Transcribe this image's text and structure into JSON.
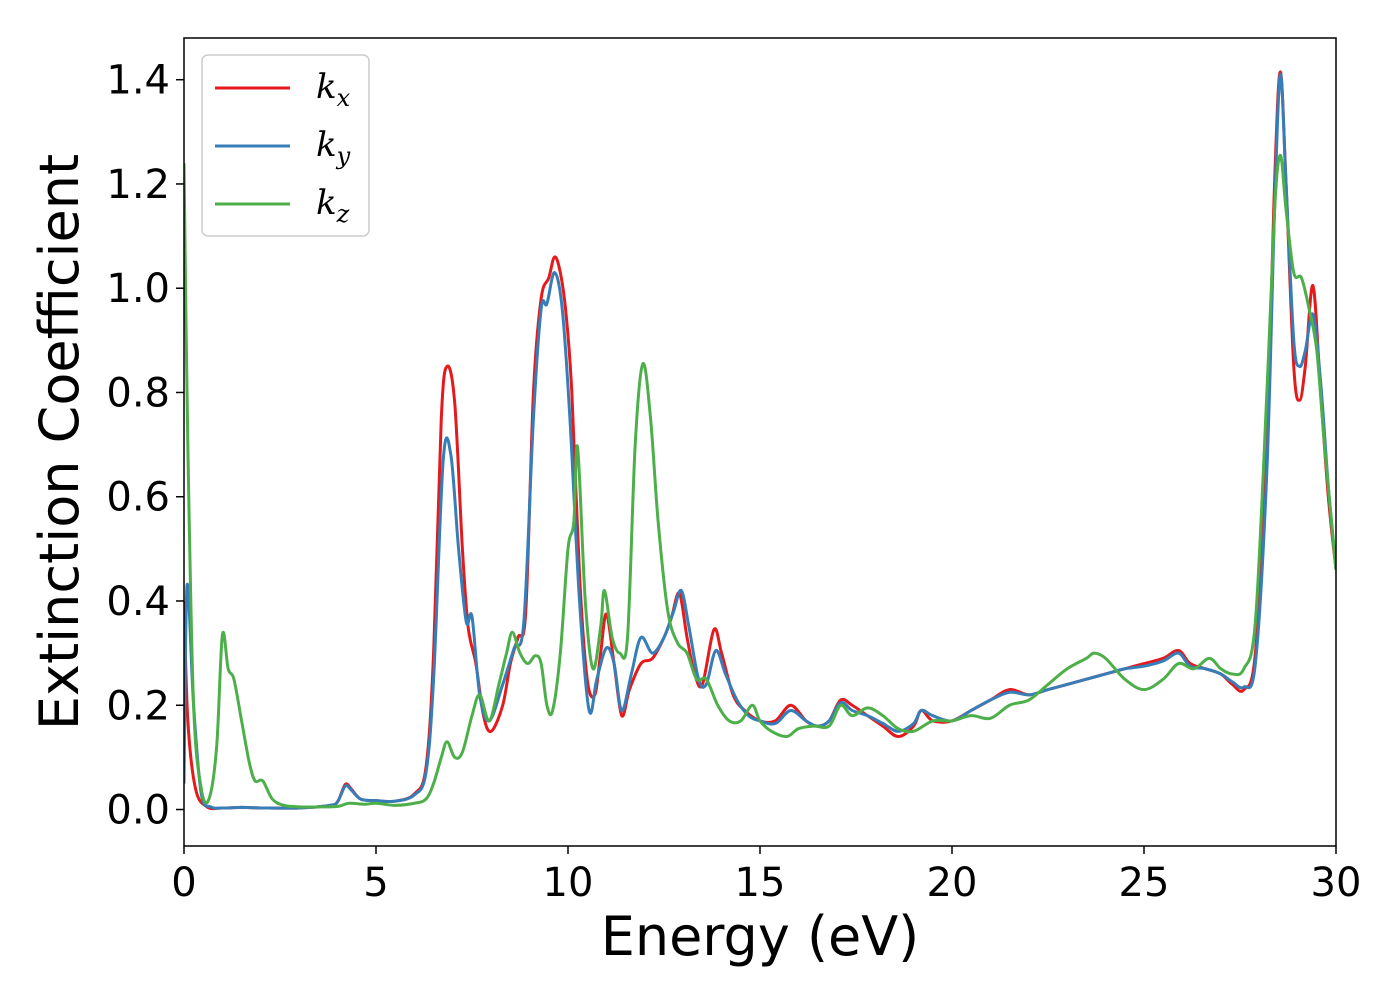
{
  "chart_data": {
    "type": "line",
    "title": "",
    "xlabel": "Energy (eV)",
    "ylabel": "Extinction Coefficient",
    "xlim": [
      0,
      30
    ],
    "ylim": [
      -0.07,
      1.48
    ],
    "xticks": [
      0,
      5,
      10,
      15,
      20,
      25,
      30
    ],
    "xtick_labels": [
      "0",
      "5",
      "10",
      "15",
      "20",
      "25",
      "30"
    ],
    "yticks": [
      0.0,
      0.2,
      0.4,
      0.6,
      0.8,
      1.0,
      1.2,
      1.4
    ],
    "ytick_labels": [
      "0.0",
      "0.2",
      "0.4",
      "0.6",
      "0.8",
      "1.0",
      "1.2",
      "1.4"
    ],
    "grid": false,
    "legend_position": "top-left",
    "series": [
      {
        "name": "kx",
        "label_base": "k",
        "label_sub": "x",
        "color": "#e41a1c",
        "points": [
          [
            0,
            0.4
          ],
          [
            0.1,
            0.17
          ],
          [
            0.3,
            0.04
          ],
          [
            0.6,
            0.005
          ],
          [
            1.0,
            0.003
          ],
          [
            1.5,
            0.004
          ],
          [
            2.0,
            0.003
          ],
          [
            3.0,
            0.003
          ],
          [
            3.8,
            0.008
          ],
          [
            4.0,
            0.015
          ],
          [
            4.2,
            0.048
          ],
          [
            4.35,
            0.04
          ],
          [
            4.6,
            0.02
          ],
          [
            5.0,
            0.017
          ],
          [
            5.5,
            0.016
          ],
          [
            6.0,
            0.03
          ],
          [
            6.3,
            0.08
          ],
          [
            6.5,
            0.3
          ],
          [
            6.7,
            0.75
          ],
          [
            6.85,
            0.85
          ],
          [
            7.05,
            0.78
          ],
          [
            7.25,
            0.5
          ],
          [
            7.4,
            0.35
          ],
          [
            7.6,
            0.28
          ],
          [
            7.8,
            0.18
          ],
          [
            8.0,
            0.15
          ],
          [
            8.3,
            0.2
          ],
          [
            8.5,
            0.28
          ],
          [
            8.7,
            0.33
          ],
          [
            8.9,
            0.38
          ],
          [
            9.1,
            0.8
          ],
          [
            9.3,
            0.98
          ],
          [
            9.5,
            1.02
          ],
          [
            9.65,
            1.06
          ],
          [
            9.8,
            1.03
          ],
          [
            9.95,
            0.95
          ],
          [
            10.1,
            0.8
          ],
          [
            10.3,
            0.45
          ],
          [
            10.5,
            0.25
          ],
          [
            10.7,
            0.22
          ],
          [
            10.85,
            0.3
          ],
          [
            11.0,
            0.375
          ],
          [
            11.2,
            0.28
          ],
          [
            11.4,
            0.18
          ],
          [
            11.6,
            0.23
          ],
          [
            11.9,
            0.28
          ],
          [
            12.2,
            0.29
          ],
          [
            12.5,
            0.33
          ],
          [
            12.7,
            0.37
          ],
          [
            12.9,
            0.415
          ],
          [
            13.1,
            0.33
          ],
          [
            13.3,
            0.26
          ],
          [
            13.5,
            0.24
          ],
          [
            13.8,
            0.345
          ],
          [
            14.0,
            0.3
          ],
          [
            14.3,
            0.22
          ],
          [
            14.6,
            0.19
          ],
          [
            15.0,
            0.17
          ],
          [
            15.4,
            0.17
          ],
          [
            15.8,
            0.2
          ],
          [
            16.2,
            0.17
          ],
          [
            16.5,
            0.16
          ],
          [
            16.8,
            0.17
          ],
          [
            17.1,
            0.21
          ],
          [
            17.4,
            0.2
          ],
          [
            17.8,
            0.18
          ],
          [
            18.2,
            0.16
          ],
          [
            18.6,
            0.14
          ],
          [
            19.0,
            0.16
          ],
          [
            19.2,
            0.19
          ],
          [
            19.5,
            0.17
          ],
          [
            20.0,
            0.17
          ],
          [
            20.5,
            0.19
          ],
          [
            21.0,
            0.21
          ],
          [
            21.5,
            0.23
          ],
          [
            22.0,
            0.22
          ],
          [
            22.5,
            0.23
          ],
          [
            23.0,
            0.24
          ],
          [
            23.5,
            0.25
          ],
          [
            24.0,
            0.26
          ],
          [
            24.5,
            0.27
          ],
          [
            25.0,
            0.28
          ],
          [
            25.5,
            0.29
          ],
          [
            25.9,
            0.305
          ],
          [
            26.2,
            0.28
          ],
          [
            26.6,
            0.27
          ],
          [
            27.0,
            0.26
          ],
          [
            27.3,
            0.24
          ],
          [
            27.6,
            0.23
          ],
          [
            27.9,
            0.3
          ],
          [
            28.2,
            0.7
          ],
          [
            28.4,
            1.2
          ],
          [
            28.55,
            1.415
          ],
          [
            28.7,
            1.2
          ],
          [
            28.9,
            0.85
          ],
          [
            29.05,
            0.785
          ],
          [
            29.2,
            0.85
          ],
          [
            29.4,
            1.005
          ],
          [
            29.6,
            0.8
          ],
          [
            29.8,
            0.6
          ],
          [
            30.0,
            0.46
          ]
        ]
      },
      {
        "name": "ky",
        "label_base": "k",
        "label_sub": "y",
        "color": "#377eb8",
        "points": [
          [
            0,
            0.05
          ],
          [
            0.08,
            0.43
          ],
          [
            0.25,
            0.2
          ],
          [
            0.45,
            0.03
          ],
          [
            0.7,
            0.005
          ],
          [
            1.0,
            0.003
          ],
          [
            1.5,
            0.004
          ],
          [
            2.0,
            0.003
          ],
          [
            3.0,
            0.003
          ],
          [
            3.8,
            0.008
          ],
          [
            4.0,
            0.015
          ],
          [
            4.2,
            0.045
          ],
          [
            4.35,
            0.038
          ],
          [
            4.6,
            0.02
          ],
          [
            5.0,
            0.017
          ],
          [
            5.5,
            0.016
          ],
          [
            6.0,
            0.028
          ],
          [
            6.3,
            0.07
          ],
          [
            6.5,
            0.25
          ],
          [
            6.75,
            0.67
          ],
          [
            6.95,
            0.68
          ],
          [
            7.15,
            0.5
          ],
          [
            7.35,
            0.36
          ],
          [
            7.5,
            0.37
          ],
          [
            7.7,
            0.22
          ],
          [
            7.95,
            0.17
          ],
          [
            8.3,
            0.24
          ],
          [
            8.6,
            0.31
          ],
          [
            8.85,
            0.36
          ],
          [
            9.1,
            0.75
          ],
          [
            9.3,
            0.96
          ],
          [
            9.45,
            0.97
          ],
          [
            9.65,
            1.03
          ],
          [
            9.85,
            0.96
          ],
          [
            10.05,
            0.75
          ],
          [
            10.3,
            0.4
          ],
          [
            10.55,
            0.19
          ],
          [
            10.75,
            0.25
          ],
          [
            11.0,
            0.31
          ],
          [
            11.2,
            0.28
          ],
          [
            11.4,
            0.19
          ],
          [
            11.65,
            0.26
          ],
          [
            11.9,
            0.33
          ],
          [
            12.2,
            0.3
          ],
          [
            12.5,
            0.33
          ],
          [
            12.75,
            0.38
          ],
          [
            12.95,
            0.42
          ],
          [
            13.15,
            0.35
          ],
          [
            13.4,
            0.25
          ],
          [
            13.6,
            0.24
          ],
          [
            13.85,
            0.305
          ],
          [
            14.1,
            0.26
          ],
          [
            14.4,
            0.21
          ],
          [
            14.7,
            0.18
          ],
          [
            15.0,
            0.17
          ],
          [
            15.4,
            0.165
          ],
          [
            15.8,
            0.19
          ],
          [
            16.2,
            0.17
          ],
          [
            16.5,
            0.16
          ],
          [
            16.8,
            0.17
          ],
          [
            17.1,
            0.205
          ],
          [
            17.4,
            0.19
          ],
          [
            17.8,
            0.18
          ],
          [
            18.2,
            0.165
          ],
          [
            18.6,
            0.15
          ],
          [
            19.0,
            0.165
          ],
          [
            19.2,
            0.19
          ],
          [
            19.5,
            0.18
          ],
          [
            20.0,
            0.17
          ],
          [
            20.5,
            0.19
          ],
          [
            21.0,
            0.21
          ],
          [
            21.5,
            0.225
          ],
          [
            22.0,
            0.22
          ],
          [
            22.5,
            0.23
          ],
          [
            23.0,
            0.24
          ],
          [
            23.5,
            0.25
          ],
          [
            24.0,
            0.26
          ],
          [
            24.5,
            0.27
          ],
          [
            25.0,
            0.275
          ],
          [
            25.5,
            0.285
          ],
          [
            25.9,
            0.3
          ],
          [
            26.2,
            0.275
          ],
          [
            26.6,
            0.27
          ],
          [
            27.0,
            0.26
          ],
          [
            27.3,
            0.245
          ],
          [
            27.6,
            0.235
          ],
          [
            27.9,
            0.28
          ],
          [
            28.2,
            0.65
          ],
          [
            28.4,
            1.15
          ],
          [
            28.55,
            1.41
          ],
          [
            28.7,
            1.2
          ],
          [
            28.9,
            0.9
          ],
          [
            29.05,
            0.85
          ],
          [
            29.2,
            0.88
          ],
          [
            29.4,
            0.95
          ],
          [
            29.6,
            0.82
          ],
          [
            29.8,
            0.62
          ],
          [
            30.0,
            0.46
          ]
        ]
      },
      {
        "name": "kz",
        "label_base": "k",
        "label_sub": "z",
        "color": "#4daf4a",
        "points": [
          [
            0,
            1.24
          ],
          [
            0.1,
            0.7
          ],
          [
            0.25,
            0.2
          ],
          [
            0.45,
            0.04
          ],
          [
            0.65,
            0.02
          ],
          [
            0.85,
            0.12
          ],
          [
            1.0,
            0.335
          ],
          [
            1.15,
            0.27
          ],
          [
            1.3,
            0.25
          ],
          [
            1.5,
            0.17
          ],
          [
            1.7,
            0.09
          ],
          [
            1.85,
            0.055
          ],
          [
            2.05,
            0.055
          ],
          [
            2.3,
            0.02
          ],
          [
            2.6,
            0.008
          ],
          [
            3.0,
            0.005
          ],
          [
            3.5,
            0.005
          ],
          [
            4.0,
            0.006
          ],
          [
            4.3,
            0.012
          ],
          [
            4.7,
            0.01
          ],
          [
            5.0,
            0.012
          ],
          [
            5.5,
            0.008
          ],
          [
            6.0,
            0.012
          ],
          [
            6.3,
            0.02
          ],
          [
            6.5,
            0.05
          ],
          [
            6.7,
            0.1
          ],
          [
            6.85,
            0.13
          ],
          [
            7.05,
            0.1
          ],
          [
            7.25,
            0.11
          ],
          [
            7.5,
            0.18
          ],
          [
            7.7,
            0.22
          ],
          [
            7.95,
            0.17
          ],
          [
            8.2,
            0.24
          ],
          [
            8.4,
            0.3
          ],
          [
            8.55,
            0.34
          ],
          [
            8.75,
            0.3
          ],
          [
            8.95,
            0.28
          ],
          [
            9.15,
            0.295
          ],
          [
            9.3,
            0.28
          ],
          [
            9.45,
            0.2
          ],
          [
            9.6,
            0.19
          ],
          [
            9.8,
            0.3
          ],
          [
            10.0,
            0.5
          ],
          [
            10.15,
            0.55
          ],
          [
            10.25,
            0.695
          ],
          [
            10.45,
            0.4
          ],
          [
            10.65,
            0.27
          ],
          [
            10.85,
            0.35
          ],
          [
            10.95,
            0.42
          ],
          [
            11.15,
            0.33
          ],
          [
            11.35,
            0.3
          ],
          [
            11.55,
            0.33
          ],
          [
            11.75,
            0.7
          ],
          [
            11.95,
            0.855
          ],
          [
            12.15,
            0.75
          ],
          [
            12.35,
            0.55
          ],
          [
            12.6,
            0.38
          ],
          [
            12.85,
            0.32
          ],
          [
            13.1,
            0.3
          ],
          [
            13.35,
            0.25
          ],
          [
            13.6,
            0.25
          ],
          [
            13.9,
            0.2
          ],
          [
            14.2,
            0.17
          ],
          [
            14.5,
            0.17
          ],
          [
            14.8,
            0.2
          ],
          [
            15.0,
            0.17
          ],
          [
            15.3,
            0.15
          ],
          [
            15.7,
            0.14
          ],
          [
            16.0,
            0.155
          ],
          [
            16.4,
            0.16
          ],
          [
            16.8,
            0.16
          ],
          [
            17.1,
            0.2
          ],
          [
            17.4,
            0.18
          ],
          [
            17.8,
            0.195
          ],
          [
            18.2,
            0.18
          ],
          [
            18.6,
            0.155
          ],
          [
            19.0,
            0.15
          ],
          [
            19.5,
            0.17
          ],
          [
            20.0,
            0.17
          ],
          [
            20.5,
            0.18
          ],
          [
            21.0,
            0.175
          ],
          [
            21.5,
            0.2
          ],
          [
            22.0,
            0.21
          ],
          [
            22.5,
            0.24
          ],
          [
            23.0,
            0.27
          ],
          [
            23.5,
            0.29
          ],
          [
            23.7,
            0.3
          ],
          [
            24.0,
            0.29
          ],
          [
            24.5,
            0.25
          ],
          [
            25.0,
            0.23
          ],
          [
            25.5,
            0.25
          ],
          [
            25.9,
            0.28
          ],
          [
            26.3,
            0.27
          ],
          [
            26.7,
            0.29
          ],
          [
            27.0,
            0.27
          ],
          [
            27.3,
            0.26
          ],
          [
            27.6,
            0.27
          ],
          [
            27.9,
            0.36
          ],
          [
            28.2,
            0.8
          ],
          [
            28.4,
            1.15
          ],
          [
            28.55,
            1.255
          ],
          [
            28.7,
            1.15
          ],
          [
            28.9,
            1.03
          ],
          [
            29.1,
            1.02
          ],
          [
            29.3,
            0.96
          ],
          [
            29.5,
            0.88
          ],
          [
            29.7,
            0.7
          ],
          [
            30.0,
            0.46
          ]
        ]
      }
    ]
  }
}
